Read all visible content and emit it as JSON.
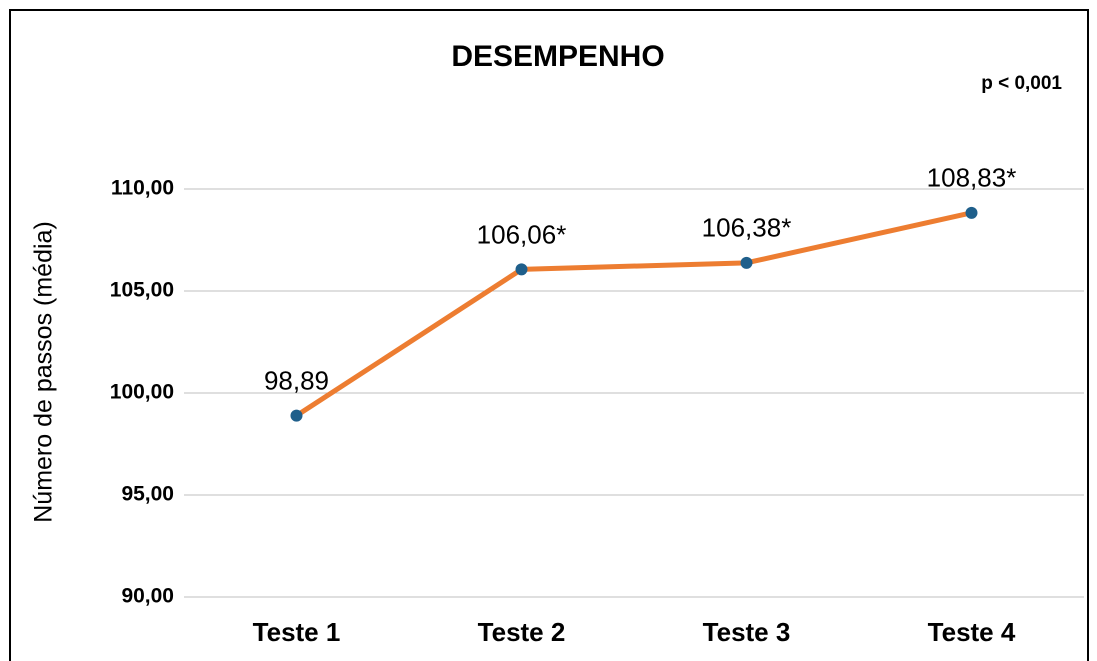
{
  "chart_data": {
    "type": "line",
    "title": "DESEMPENHO",
    "annotation": "p < 0,001",
    "y_label": "Número de passos (média)",
    "categories": [
      "Teste 1",
      "Teste 2",
      "Teste 3",
      "Teste 4"
    ],
    "series": [
      {
        "name": "Desempenho",
        "color": "#ed7d31",
        "marker_color": "#1f5f8b",
        "values": [
          98.89,
          106.06,
          106.38,
          108.83
        ],
        "value_labels": [
          "98,89",
          "106,06*",
          "106,38*",
          "108,83*"
        ]
      }
    ],
    "ylim": [
      90,
      110
    ],
    "yticks": [
      {
        "value": 90,
        "label": "90,00"
      },
      {
        "value": 95,
        "label": "95,00"
      },
      {
        "value": 100,
        "label": "100,00"
      },
      {
        "value": 105,
        "label": "105,00"
      },
      {
        "value": 110,
        "label": "110,00"
      }
    ],
    "grid": true
  }
}
